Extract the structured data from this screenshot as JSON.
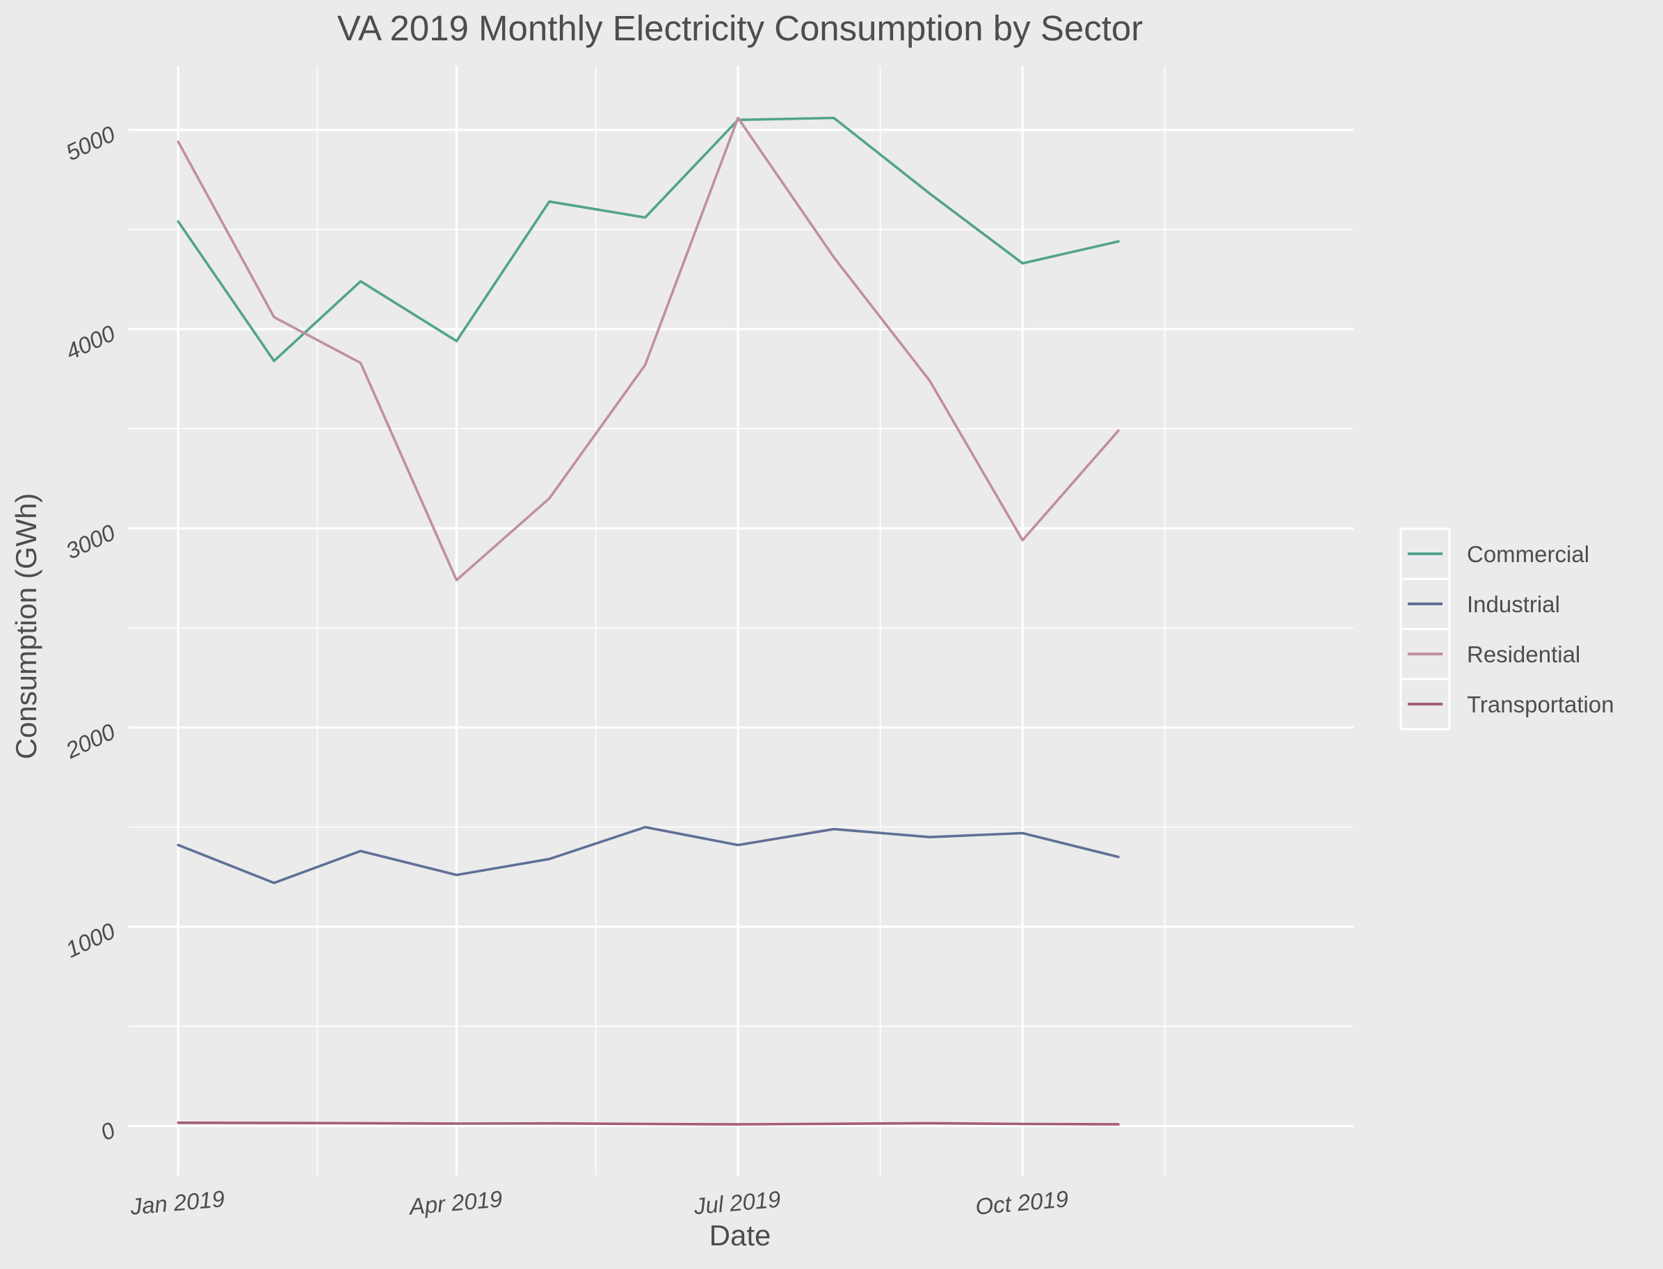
{
  "chart_data": {
    "type": "line",
    "title": "VA 2019 Monthly Electricity Consumption by Sector",
    "xlabel": "Date",
    "ylabel": "Consumption (GWh)",
    "x": [
      "2019-01",
      "2019-02",
      "2019-03",
      "2019-04",
      "2019-05",
      "2019-06",
      "2019-07",
      "2019-08",
      "2019-09",
      "2019-10",
      "2019-11"
    ],
    "x_ticks": [
      {
        "date": "2019-01",
        "label": "Jan 2019"
      },
      {
        "date": "2019-04",
        "label": "Apr 2019"
      },
      {
        "date": "2019-07",
        "label": "Jul 2019"
      },
      {
        "date": "2019-10",
        "label": "Oct 2019"
      }
    ],
    "xlim": [
      "2018-12-16",
      "2020-01-16"
    ],
    "y_ticks": [
      0,
      1000,
      2000,
      3000,
      4000,
      5000
    ],
    "ylim": [
      -250,
      5320
    ],
    "grid": true,
    "legend_position": "right",
    "series": [
      {
        "name": "Commercial",
        "color": "#52a38d",
        "values": [
          4540,
          3840,
          4240,
          3940,
          4640,
          4560,
          5050,
          5060,
          4680,
          4330,
          4440
        ]
      },
      {
        "name": "Industrial",
        "color": "#5f6f97",
        "values": [
          1410,
          1220,
          1380,
          1260,
          1340,
          1500,
          1410,
          1490,
          1450,
          1470,
          1350
        ]
      },
      {
        "name": "Residential",
        "color": "#c0909c",
        "values": [
          4940,
          4060,
          3830,
          2740,
          3150,
          3820,
          5060,
          4360,
          3740,
          2940,
          3490
        ]
      },
      {
        "name": "Transportation",
        "color": "#a35e72",
        "values": [
          16,
          15,
          14,
          12,
          13,
          10,
          8,
          11,
          14,
          10,
          8
        ]
      }
    ]
  }
}
